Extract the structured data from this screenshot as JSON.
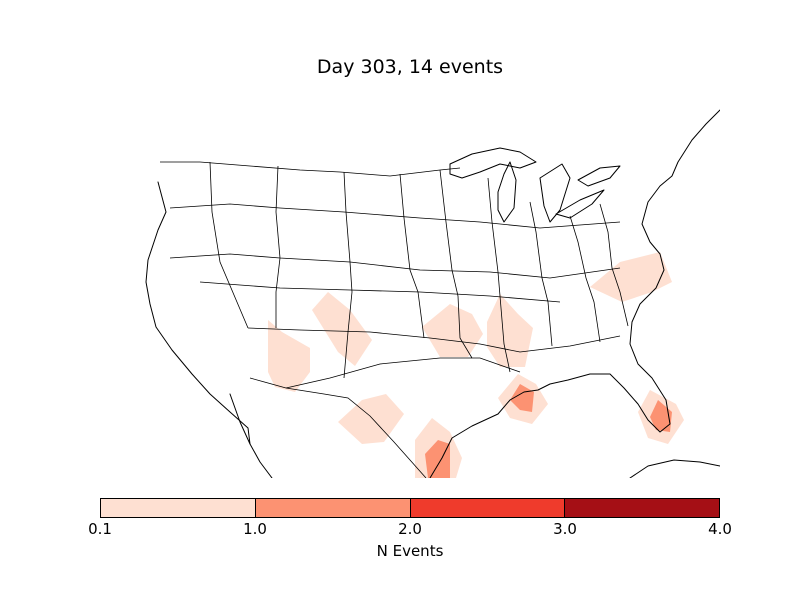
{
  "title": "Day 303, 14 events",
  "map": {
    "projection": "lambert-conformal",
    "region": "Contiguous United States",
    "boundaries": [
      "coastlines",
      "state-borders",
      "country-borders"
    ],
    "event_areas": [
      {
        "place": "East Arizona",
        "n_events": 0.5
      },
      {
        "place": "SW Colorado / NW New Mexico",
        "n_events": 0.5
      },
      {
        "place": "NE Oklahoma",
        "n_events": 0.5
      },
      {
        "place": "NE Arkansas / West Tennessee",
        "n_events": 0.5
      },
      {
        "place": "North Carolina",
        "n_events": 0.5
      },
      {
        "place": "Mexico / Texas border",
        "n_events": 0.5
      },
      {
        "place": "South Texas coast",
        "n_events": 1.5
      },
      {
        "place": "SE Louisiana",
        "n_events": 1.5
      },
      {
        "place": "South Florida",
        "n_events": 1.5
      }
    ]
  },
  "colorbar": {
    "label": "N Events",
    "ticks": [
      "0.1",
      "1.0",
      "2.0",
      "3.0",
      "4.0"
    ],
    "colors": [
      "#fee0d2",
      "#fc9272",
      "#ef3b2c",
      "#a50f15"
    ]
  }
}
